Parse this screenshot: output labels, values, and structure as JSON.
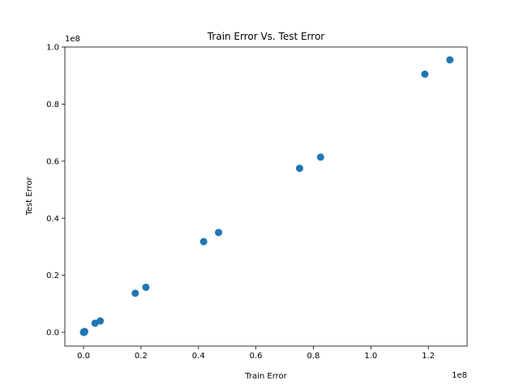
{
  "chart_data": {
    "type": "scatter",
    "title": "Train Error Vs. Test Error",
    "xlabel": "Train Error",
    "ylabel": "Test Error",
    "x_offset_label": "1e8",
    "y_offset_label": "1e8",
    "xlim": [
      -0.065,
      1.335
    ],
    "ylim": [
      -0.048,
      1.0
    ],
    "x_ticks": [
      0.0,
      0.2,
      0.4,
      0.6,
      0.8,
      1.0,
      1.2
    ],
    "x_tick_labels": [
      "0.0",
      "0.2",
      "0.4",
      "0.6",
      "0.8",
      "1.0",
      "1.2"
    ],
    "y_ticks": [
      0.0,
      0.2,
      0.4,
      0.6,
      0.8,
      1.0
    ],
    "y_tick_labels": [
      "0.0",
      "0.2",
      "0.4",
      "0.6",
      "0.8",
      "1.0"
    ],
    "grid": false,
    "marker_color": "#1f77b4",
    "points": [
      {
        "x": 0.0,
        "y": 0.0
      },
      {
        "x": 0.001,
        "y": 0.001
      },
      {
        "x": 0.002,
        "y": 0.0
      },
      {
        "x": 0.001,
        "y": 0.002
      },
      {
        "x": 0.003,
        "y": 0.001
      },
      {
        "x": 0.004,
        "y": 0.003
      },
      {
        "x": 0.04,
        "y": 0.032
      },
      {
        "x": 0.058,
        "y": 0.04
      },
      {
        "x": 0.18,
        "y": 0.137
      },
      {
        "x": 0.217,
        "y": 0.158
      },
      {
        "x": 0.418,
        "y": 0.318
      },
      {
        "x": 0.47,
        "y": 0.35
      },
      {
        "x": 0.752,
        "y": 0.575
      },
      {
        "x": 0.825,
        "y": 0.614
      },
      {
        "x": 1.188,
        "y": 0.905
      },
      {
        "x": 1.275,
        "y": 0.955
      }
    ]
  }
}
